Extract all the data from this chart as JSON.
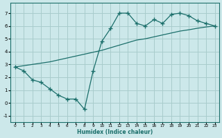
{
  "xlabel": "Humidex (Indice chaleur)",
  "ylabel": "",
  "bg_color": "#cce8ea",
  "grid_color": "#a8cccc",
  "line_color": "#1a6e6a",
  "xlim": [
    -0.5,
    23.5
  ],
  "ylim": [
    -1.5,
    7.8
  ],
  "xticks": [
    0,
    1,
    2,
    3,
    4,
    5,
    6,
    7,
    8,
    9,
    10,
    11,
    12,
    13,
    14,
    15,
    16,
    17,
    18,
    19,
    20,
    21,
    22,
    23
  ],
  "yticks": [
    -1,
    0,
    1,
    2,
    3,
    4,
    5,
    6,
    7
  ],
  "line1_x": [
    0,
    1,
    2,
    3,
    4,
    5,
    6,
    7,
    8,
    9,
    10,
    11,
    12,
    13,
    14,
    15,
    16,
    17,
    18,
    19,
    20,
    21,
    22,
    23
  ],
  "line1_y": [
    2.8,
    2.5,
    1.8,
    1.6,
    1.1,
    0.6,
    0.3,
    0.3,
    -0.5,
    2.5,
    4.8,
    5.8,
    7.0,
    7.0,
    6.2,
    6.0,
    6.5,
    6.2,
    6.9,
    7.0,
    6.8,
    6.4,
    6.2,
    6.0
  ],
  "line2_x": [
    0,
    1,
    2,
    3,
    4,
    5,
    6,
    7,
    8,
    9,
    10,
    11,
    12,
    13,
    14,
    15,
    16,
    17,
    18,
    19,
    20,
    21,
    22,
    23
  ],
  "line2_y": [
    2.8,
    2.9,
    3.0,
    3.1,
    3.2,
    3.35,
    3.5,
    3.65,
    3.8,
    3.95,
    4.1,
    4.3,
    4.5,
    4.7,
    4.9,
    5.0,
    5.15,
    5.3,
    5.45,
    5.6,
    5.7,
    5.82,
    5.92,
    6.0
  ]
}
